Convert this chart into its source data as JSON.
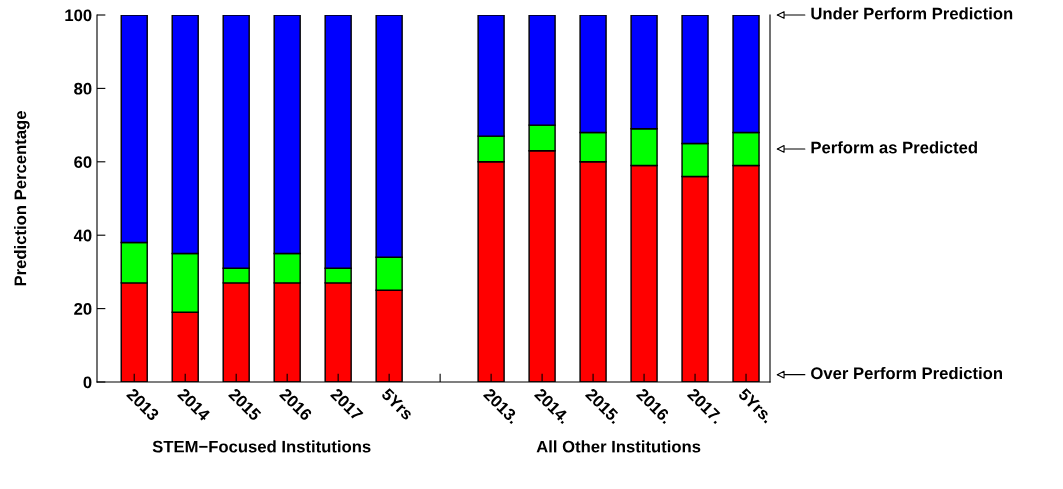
{
  "chart_data": {
    "type": "bar",
    "stacked": true,
    "ylabel": "Prediction Percentage",
    "categories": [
      "2013",
      "2014",
      "2015",
      "2016",
      "2017",
      "5Yrs",
      null,
      "2013.",
      "2014.",
      "2015.",
      "2016.",
      "2017.",
      "5Yrs."
    ],
    "series": [
      {
        "name": "Over Perform Prediction",
        "color": "#ff0000",
        "values": [
          27,
          19,
          27,
          27,
          27,
          25,
          null,
          60,
          63,
          60,
          59,
          56,
          59
        ]
      },
      {
        "name": "Perform as Predicted",
        "color": "#00ff00",
        "values": [
          11,
          16,
          4,
          8,
          4,
          9,
          null,
          7,
          7,
          8,
          10,
          9,
          9
        ]
      },
      {
        "name": "Under Perform Prediction",
        "color": "#0000ff",
        "values": [
          62,
          65,
          69,
          65,
          69,
          66,
          null,
          33,
          30,
          32,
          31,
          35,
          32
        ]
      }
    ],
    "ylim": [
      0,
      100
    ],
    "yticks": [
      0,
      20,
      40,
      60,
      80,
      100
    ],
    "grid": false,
    "legend": "right",
    "annotations": [
      "STEM−Focused Institutions",
      "All Other Institutions"
    ]
  }
}
